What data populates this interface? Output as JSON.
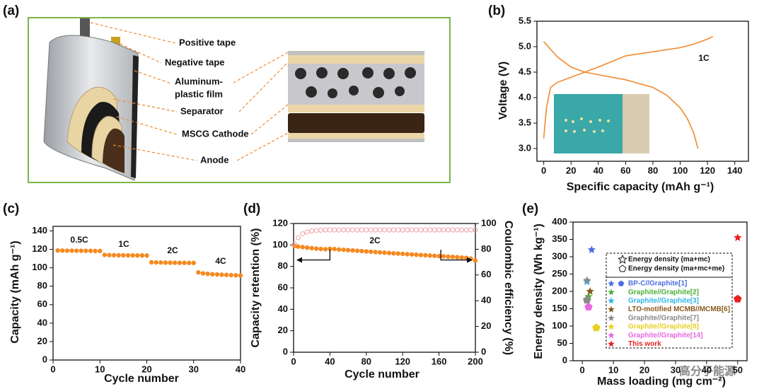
{
  "diagram": {
    "panel": "(a)",
    "labels": [
      "Positive tape",
      "Negative tape",
      "Aluminum-",
      "plastic film",
      "Separator",
      "MSCG Cathode",
      "Anode"
    ]
  },
  "watermark": "高分子能源",
  "chart_data": [
    {
      "type": "line",
      "panel": "(b)",
      "x_label": "Specific capacity (mAh g⁻¹)",
      "y_label": "Voltage (V)",
      "annotations": [
        "1C"
      ],
      "xlim": [
        -5,
        150
      ],
      "xticks": [
        0,
        20,
        40,
        60,
        80,
        100,
        120,
        140
      ],
      "ylim": [
        2.75,
        5.5
      ],
      "yticks": [
        {
          "value": 3,
          "label": "3.0"
        },
        3.5,
        {
          "value": 4,
          "label": "4.0"
        },
        4.5,
        {
          "value": 5,
          "label": "5.0"
        },
        5.5
      ],
      "series": [
        {
          "color": "#f08a30",
          "x": [
            0,
            2,
            5,
            10,
            20,
            40,
            60,
            80,
            100,
            110,
            120,
            124
          ],
          "values": [
            3.2,
            3.8,
            4.2,
            4.3,
            4.4,
            4.6,
            4.82,
            4.9,
            4.98,
            5.05,
            5.15,
            5.2
          ]
        },
        {
          "color": "#f08a30",
          "x": [
            0,
            5,
            10,
            20,
            30,
            40,
            60,
            80,
            90,
            100,
            105,
            110,
            113
          ],
          "values": [
            5.1,
            4.95,
            4.8,
            4.6,
            4.5,
            4.45,
            4.35,
            4.2,
            4.05,
            3.8,
            3.6,
            3.3,
            3.0
          ]
        }
      ]
    },
    {
      "type": "scatter",
      "panel": "(c)",
      "x_label": "Cycle number",
      "y_label": "Capacity (mAh g⁻¹)",
      "annotations": [
        "0.5C",
        "1C",
        "2C",
        "4C"
      ],
      "xlim": [
        0,
        40
      ],
      "xticks": [
        0,
        10,
        20,
        30,
        40
      ],
      "ylim": [
        0,
        145
      ],
      "yticks": [
        0,
        20,
        40,
        60,
        80,
        100,
        120,
        140
      ],
      "x": [
        1,
        2,
        3,
        4,
        5,
        6,
        7,
        8,
        9,
        10,
        11,
        12,
        13,
        14,
        15,
        16,
        17,
        18,
        19,
        20,
        21,
        22,
        23,
        24,
        25,
        26,
        27,
        28,
        29,
        30,
        31,
        32,
        33,
        34,
        35,
        36,
        37,
        38,
        39,
        40
      ],
      "series": [
        {
          "color": "#f5891f",
          "marker": "circle",
          "values": [
            118.8,
            118.7,
            118.6,
            118.6,
            118.5,
            118.5,
            118.4,
            118.4,
            118.3,
            118.3,
            114,
            113.8,
            113.7,
            113.6,
            113.6,
            113.5,
            113.5,
            113.4,
            113.4,
            113.3,
            106,
            105.8,
            105.7,
            105.6,
            105.5,
            105.5,
            105.4,
            105.4,
            105.3,
            105.3,
            95,
            94,
            93.5,
            93,
            92.8,
            92.5,
            92.3,
            92.1,
            91.9,
            91.7
          ]
        }
      ]
    },
    {
      "type": "scatter",
      "panel": "(d)",
      "x_label": "Cycle number",
      "y_label": "Capacity retention (%)",
      "y2_label": "Coulombic efficiency (%)",
      "annotations": [
        "2C"
      ],
      "xlim": [
        0,
        200
      ],
      "xticks": [
        0,
        40,
        80,
        120,
        160,
        200
      ],
      "ylim": [
        0,
        120
      ],
      "yticks": [
        0,
        20,
        40,
        60,
        80,
        100,
        120
      ],
      "y2lim": [
        0,
        100
      ],
      "y2ticks": [
        0,
        20,
        40,
        60,
        80,
        100
      ],
      "x": [
        1,
        5,
        10,
        15,
        20,
        25,
        30,
        35,
        40,
        45,
        50,
        55,
        60,
        65,
        70,
        75,
        80,
        85,
        90,
        95,
        100,
        105,
        110,
        115,
        120,
        125,
        130,
        135,
        140,
        145,
        150,
        155,
        160,
        165,
        170,
        175,
        180,
        185,
        190,
        195,
        200
      ],
      "series": [
        {
          "color": "#f5891f",
          "marker": "circle",
          "values": [
            99,
            98.5,
            98,
            97.5,
            97,
            96.6,
            96.3,
            96,
            96.5,
            96.2,
            95.8,
            95.5,
            95.2,
            94.9,
            94.6,
            94.3,
            94,
            93.7,
            93.4,
            93.1,
            92.8,
            92.5,
            92.2,
            92,
            91.7,
            91.4,
            91.2,
            90.9,
            90.6,
            90.4,
            90.1,
            89.9,
            89.6,
            89.4,
            89.1,
            88.9,
            88.6,
            88.3,
            88,
            87.2,
            85.5
          ]
        },
        {
          "color": "#f0a0a8",
          "marker": "circle-open",
          "axis": "y2",
          "values": [
            84,
            89,
            92,
            93.5,
            94.2,
            94.6,
            94.8,
            95,
            95,
            95,
            95,
            95,
            95,
            95,
            95,
            95,
            95,
            95,
            95,
            95,
            95,
            95,
            95,
            95,
            95,
            95,
            95,
            95,
            95,
            95,
            95,
            95,
            95,
            95,
            95,
            95,
            95,
            95,
            95,
            95,
            95
          ]
        }
      ]
    },
    {
      "type": "scatter",
      "panel": "(e)",
      "x_label": "Mass loading (mg cm⁻²)",
      "y_label": "Energy density (Wh kg⁻¹)",
      "legend_headers": [
        "Energy density (ma+mc)",
        "Energy density (ma+mc+me)"
      ],
      "xlim": [
        -3,
        53
      ],
      "xticks": [
        0,
        10,
        20,
        30,
        40,
        50
      ],
      "ylim": [
        0,
        400
      ],
      "yticks": [
        0,
        50,
        100,
        150,
        200,
        250,
        300,
        350,
        400
      ],
      "series": [
        {
          "name": "BP-C//Graphite[1]",
          "color": "#4a6ee0",
          "markers": [
            "star"
          ],
          "x": [
            3
          ],
          "values": [
            320
          ]
        },
        {
          "name": "Graphite//Graphite[2]",
          "color": "#4caf3a",
          "markers": [
            "star"
          ],
          "x": [
            2
          ],
          "values": [
            185
          ]
        },
        {
          "name": "Graphite//Graphite[3]",
          "color": "#30b4e8",
          "markers": [
            "star"
          ],
          "x": [
            1.5
          ],
          "values": [
            228
          ]
        },
        {
          "name": "LTO-motified MCMB//MCMB[6]",
          "color": "#8a5a1c",
          "markers": [
            "star"
          ],
          "x": [
            2.5
          ],
          "values": [
            200
          ]
        },
        {
          "name": "Graphite//Graphite[7]",
          "color": "#8a8a8a",
          "markers": [
            "star",
            "pentagon"
          ],
          "x": [
            1.5,
            1.5
          ],
          "values": [
            232,
            175
          ]
        },
        {
          "name": "Graphite//Graphite[8]",
          "color": "#e8d020",
          "markers": [
            "pentagon"
          ],
          "x": [
            4.5
          ],
          "values": [
            95
          ]
        },
        {
          "name": "Graphite//Graphite[14]",
          "color": "#e868e0",
          "markers": [
            "pentagon"
          ],
          "x": [
            2
          ],
          "values": [
            155
          ]
        },
        {
          "name": "This work",
          "color": "#e82020",
          "markers": [
            "star",
            "pentagon"
          ],
          "x": [
            50,
            50
          ],
          "values": [
            355,
            178
          ]
        }
      ]
    }
  ]
}
